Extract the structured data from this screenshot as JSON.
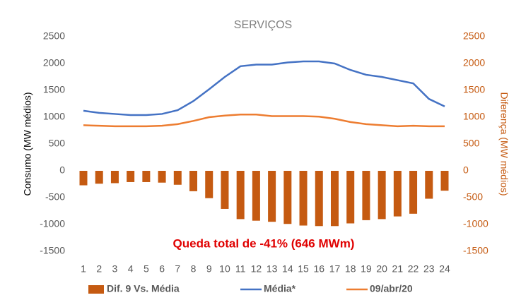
{
  "chart_data": {
    "type": "combo",
    "title": "SERVIÇOS",
    "y_label": "Consumo (MW médios)",
    "y2_label": "Diferença (MW médios)",
    "annotation": "Queda total de -41% (646 MWm)",
    "categories": [
      "1",
      "2",
      "3",
      "4",
      "5",
      "6",
      "7",
      "8",
      "9",
      "10",
      "11",
      "12",
      "13",
      "14",
      "15",
      "16",
      "17",
      "18",
      "19",
      "20",
      "21",
      "22",
      "23",
      "24"
    ],
    "series": [
      {
        "name": "Dif. 9 Vs. Média",
        "type": "bar",
        "axis": "y2",
        "color": "#c55a11",
        "values": [
          -270,
          -240,
          -230,
          -210,
          -210,
          -220,
          -260,
          -380,
          -510,
          -710,
          -900,
          -930,
          -950,
          -990,
          -1020,
          -1030,
          -1030,
          -980,
          -920,
          -900,
          -850,
          -800,
          -520,
          -370
        ]
      },
      {
        "name": "Média*",
        "type": "line",
        "color": "#4472c4",
        "values": [
          1120,
          1080,
          1060,
          1040,
          1040,
          1060,
          1130,
          1300,
          1520,
          1750,
          1950,
          1980,
          1980,
          2020,
          2040,
          2040,
          2000,
          1880,
          1790,
          1750,
          1690,
          1630,
          1340,
          1200
        ]
      },
      {
        "name": "09/abr/20",
        "type": "line",
        "color": "#ed7d31",
        "values": [
          850,
          840,
          830,
          830,
          830,
          840,
          870,
          930,
          1000,
          1030,
          1050,
          1050,
          1020,
          1020,
          1020,
          1010,
          970,
          910,
          870,
          850,
          830,
          840,
          830,
          830
        ]
      }
    ],
    "ylim": [
      -1500,
      2500
    ],
    "yticks": [
      -1500,
      -1000,
      -500,
      0,
      500,
      1000,
      1500,
      2000,
      2500
    ],
    "y2lim": [
      -1500,
      2500
    ],
    "y2ticks": [
      -1500,
      -1000,
      -500,
      0,
      500,
      1000,
      1500,
      2000,
      2500
    ],
    "grid": false
  }
}
